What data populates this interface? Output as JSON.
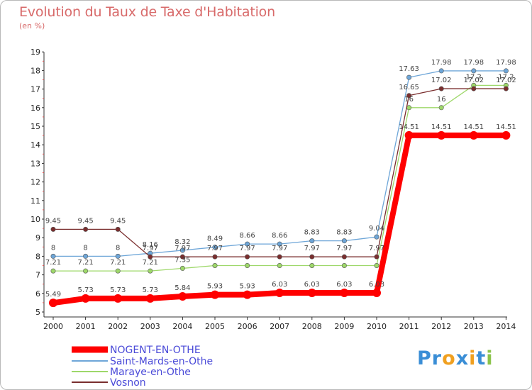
{
  "header": {
    "title": "Evolution du Taux de Taxe d'Habitation",
    "subtitle": "(en %)"
  },
  "logo": {
    "text": "Proxiti",
    "letters": [
      {
        "ch": "P",
        "color": "#3a8ed6"
      },
      {
        "ch": "r",
        "color": "#3a8ed6"
      },
      {
        "ch": "o",
        "color": "#f0a020"
      },
      {
        "ch": "x",
        "color": "#3a8ed6"
      },
      {
        "ch": "i",
        "color": "#f0a020"
      },
      {
        "ch": "t",
        "color": "#3a8ed6"
      },
      {
        "ch": "i",
        "color": "#8bc34a"
      }
    ]
  },
  "chart_data": {
    "type": "line",
    "title": "Evolution du Taux de Taxe d'Habitation",
    "ylabel": "(en %)",
    "x": [
      2000,
      2001,
      2002,
      2003,
      2004,
      2005,
      2006,
      2007,
      2008,
      2009,
      2010,
      2011,
      2012,
      2013,
      2014
    ],
    "ylim": [
      5,
      19
    ],
    "yticks": [
      5,
      6,
      7,
      8,
      9,
      10,
      11,
      12,
      13,
      14,
      15,
      16,
      17,
      18,
      19
    ],
    "grid": false,
    "legend": "bottom-left",
    "series": [
      {
        "name": "NOGENT-EN-OTHE",
        "color": "#ff0000",
        "values": [
          5.49,
          5.73,
          5.73,
          5.73,
          5.84,
          5.93,
          5.93,
          6.03,
          6.03,
          6.03,
          6.03,
          14.51,
          14.51,
          14.51,
          14.51
        ],
        "labels": [
          "5.49",
          "5.73",
          "5.73",
          "5.73",
          "5.84",
          "5.93",
          "5.93",
          "6.03",
          "6.03",
          "6.03",
          "6.03",
          "14.51",
          "14.51",
          "14.51",
          "14.51"
        ]
      },
      {
        "name": "Saint-Mards-en-Othe",
        "color": "#6ea6d8",
        "values": [
          8,
          8,
          8,
          8.16,
          8.32,
          8.49,
          8.66,
          8.66,
          8.83,
          8.83,
          9.04,
          17.63,
          17.98,
          17.98,
          17.98
        ],
        "labels": [
          "8",
          "8",
          "8",
          "8.16",
          "8.32",
          "8.49",
          "8.66",
          "8.66",
          "8.83",
          "8.83",
          "9.04",
          "17.63",
          "17.98",
          "17.98",
          "17.98"
        ]
      },
      {
        "name": "Maraye-en-Othe",
        "color": "#9ed86a",
        "values": [
          7.21,
          7.21,
          7.21,
          7.21,
          7.35,
          7.5,
          7.5,
          7.5,
          7.5,
          7.5,
          7.5,
          16,
          16,
          17.2,
          17.2
        ],
        "labels": [
          "7.21",
          "7.21",
          "7.21",
          "7.21",
          "7.35",
          "",
          "",
          "",
          "",
          "",
          "",
          "16",
          "16",
          "17.2",
          "17.2"
        ]
      },
      {
        "name": "Vosnon",
        "color": "#7a2e2e",
        "values": [
          9.45,
          9.45,
          9.45,
          7.97,
          7.97,
          7.97,
          7.97,
          7.97,
          7.97,
          7.97,
          7.97,
          16.65,
          17.02,
          17.02,
          17.02
        ],
        "labels": [
          "9.45",
          "9.45",
          "9.45",
          "7.97",
          "7.97",
          "7.97",
          "7.97",
          "7.97",
          "7.97",
          "7.97",
          "7.97",
          "16.65",
          "17.02",
          "17.02",
          "17.02"
        ]
      }
    ]
  }
}
